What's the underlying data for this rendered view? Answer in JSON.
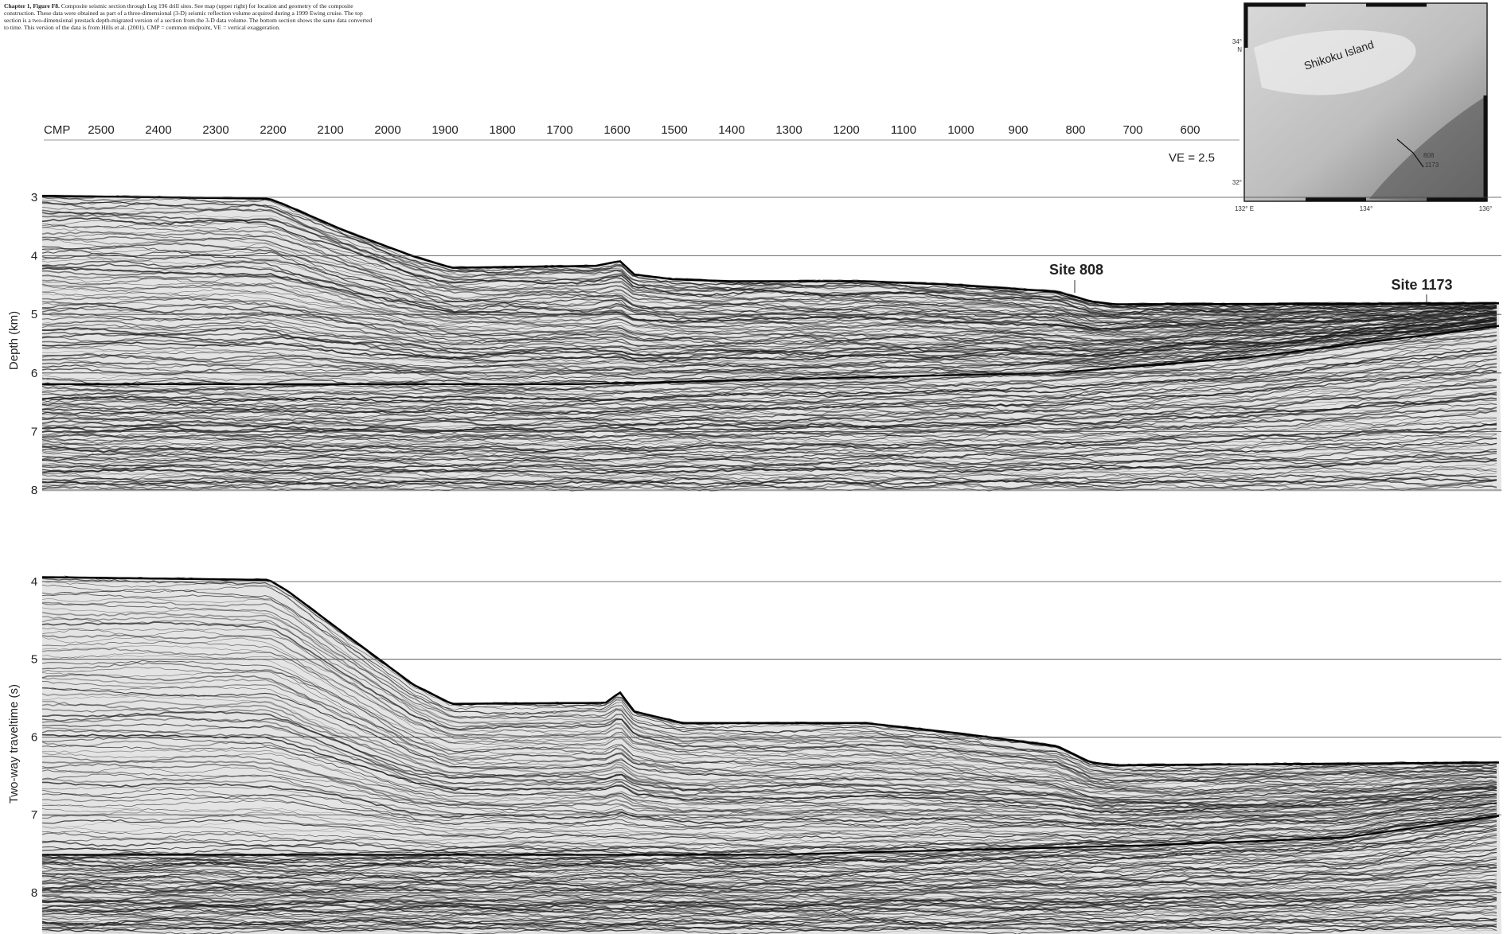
{
  "header": {
    "figure_label": "Chapter 1, Figure F8.",
    "caption": "Composite seismic section through Leg 196 drill sites. See map (upper right) for location and geometry of the composite construction. These data were obtained as part of a three-dimensional (3-D) seismic reflection volume acquired during a 1999 Ewing cruise. The top section is a two-dimensional prestack depth-migrated version of a section from the 3-D data volume. The bottom section shows the same data converted to time. This version of the data is from Hills et al. (2001). CMP = common midpoint, VE = vertical exaggeration."
  },
  "cmp_axis": {
    "label": "CMP",
    "ticks": [
      2500,
      2400,
      2300,
      2200,
      2100,
      2000,
      1900,
      1800,
      1700,
      1600,
      1500,
      1400,
      1300,
      1200,
      1100,
      1000,
      900,
      800,
      700,
      600
    ]
  },
  "vertical_exaggeration": "VE = 2.5",
  "depth_section": {
    "axis_label": "Depth (km)",
    "ticks": [
      3,
      4,
      5,
      6,
      7,
      8
    ],
    "sites": [
      "Site 808",
      "Site 1173"
    ]
  },
  "time_section": {
    "axis_label": "Two-way traveltime (s)",
    "ticks": [
      4,
      5,
      6,
      7,
      8
    ]
  },
  "map": {
    "island": "Shikoku Island",
    "lat_labels": [
      "34°",
      "N",
      "32°"
    ],
    "lon_labels": [
      "132° E",
      "134°",
      "136°"
    ],
    "site_labels": [
      "808",
      "1173"
    ]
  }
}
